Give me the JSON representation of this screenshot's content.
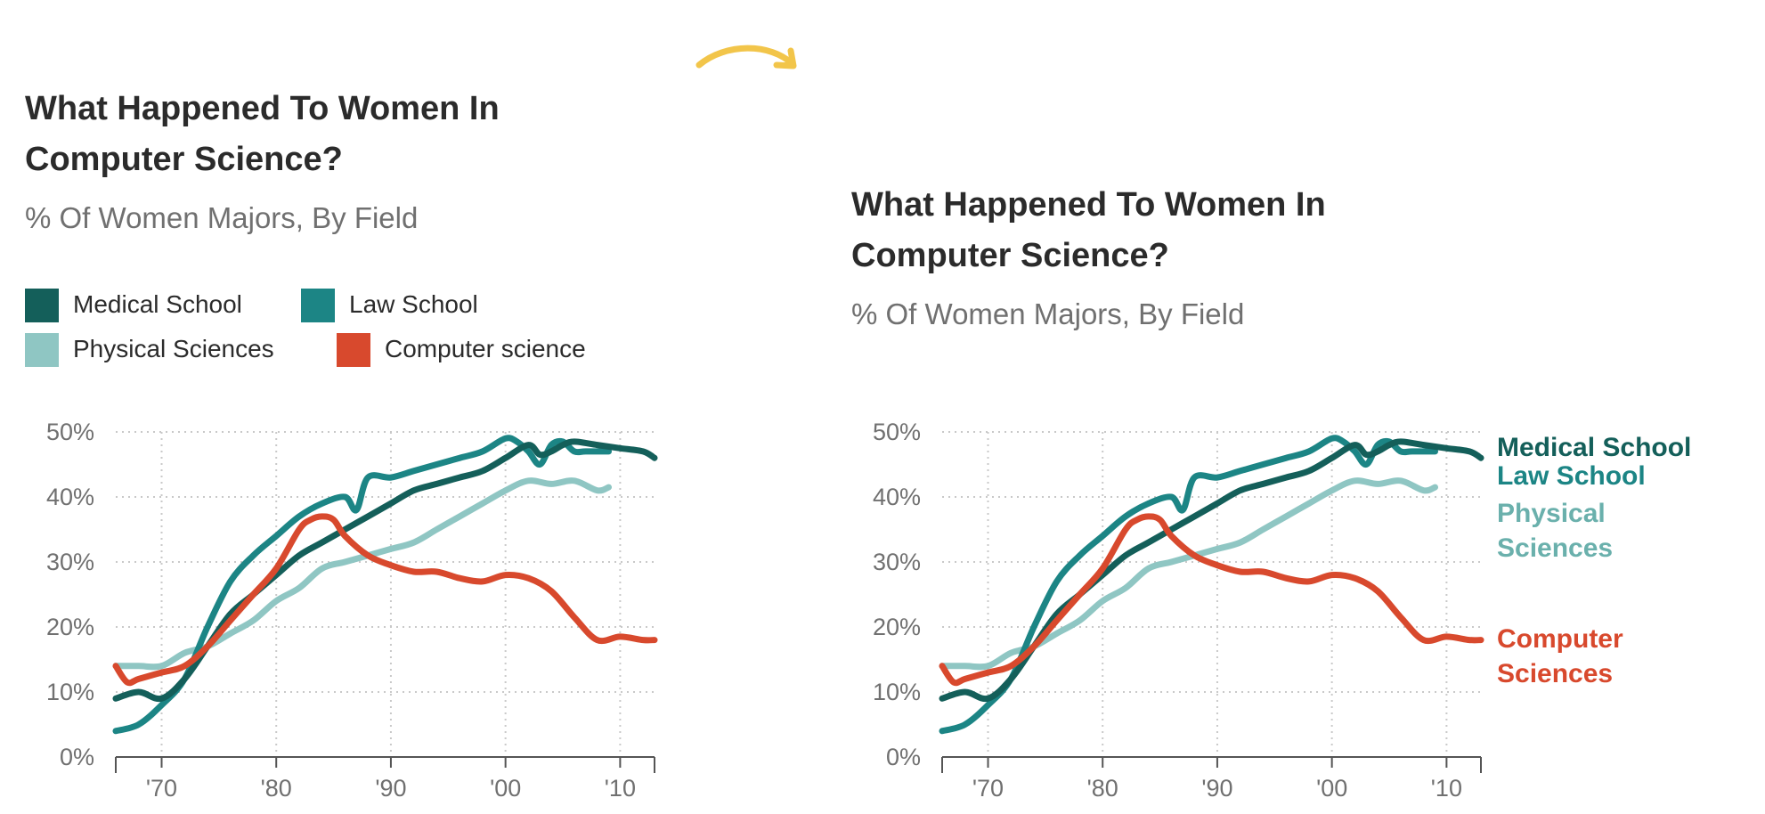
{
  "colors": {
    "medical": "#145f5a",
    "law": "#1c8585",
    "physical": "#8fc6c3",
    "cs": "#d8492d",
    "arrow": "#f2c54a",
    "grid": "#c9c9c9"
  },
  "left": {
    "title_line1": "What Happened To Women In",
    "title_line2": "Computer Science?",
    "subtitle": "% Of Women Majors, By Field",
    "legend": [
      {
        "label": "Medical School",
        "color": "#145f5a"
      },
      {
        "label": "Law School",
        "color": "#1c8585"
      },
      {
        "label": "Physical Sciences",
        "color": "#8fc6c3"
      },
      {
        "label": "Computer science",
        "color": "#d8492d"
      }
    ]
  },
  "right": {
    "title_line1": "What Happened To Women In",
    "title_line2": "Computer Science?",
    "subtitle": "% Of Women Majors, By Field",
    "end_labels": [
      {
        "lines": [
          "Medical School"
        ],
        "color": "#145f5a"
      },
      {
        "lines": [
          "Law School"
        ],
        "color": "#1c8585"
      },
      {
        "lines": [
          "Physical",
          "Sciences"
        ],
        "color": "#6ab0ac"
      },
      {
        "lines": [
          "Computer",
          "Sciences"
        ],
        "color": "#d8492d"
      }
    ]
  },
  "chart_data": {
    "type": "line",
    "title": "What Happened To Women In Computer Science?",
    "subtitle": "% Of Women Majors, By Field",
    "xlabel": "",
    "ylabel": "",
    "xlim": [
      1966,
      2013
    ],
    "ylim": [
      0,
      50
    ],
    "x_ticks": [
      1970,
      1980,
      1990,
      2000,
      2010
    ],
    "x_tick_labels": [
      "'70",
      "'80",
      "'90",
      "'00",
      "'10"
    ],
    "y_ticks": [
      0,
      10,
      20,
      30,
      40,
      50
    ],
    "y_tick_labels": [
      "0%",
      "10%",
      "20%",
      "30%",
      "40%",
      "50%"
    ],
    "grid": true,
    "series": [
      {
        "name": "Medical School",
        "color": "#145f5a",
        "x": [
          1966,
          1968,
          1970,
          1972,
          1974,
          1976,
          1978,
          1980,
          1982,
          1984,
          1986,
          1988,
          1990,
          1992,
          1994,
          1996,
          1998,
          2000,
          2002,
          2003,
          2004,
          2005,
          2006,
          2008,
          2010,
          2012,
          2013
        ],
        "y": [
          9,
          10,
          9,
          12,
          17,
          22,
          25,
          28,
          31,
          33,
          35,
          37,
          39,
          41,
          42,
          43,
          44,
          46,
          48,
          46.5,
          47,
          48,
          48.5,
          48,
          47.5,
          47,
          46
        ]
      },
      {
        "name": "Law School",
        "color": "#1c8585",
        "x": [
          1966,
          1968,
          1970,
          1972,
          1974,
          1976,
          1978,
          1980,
          1982,
          1984,
          1986,
          1987,
          1988,
          1990,
          1992,
          1994,
          1996,
          1998,
          2000,
          2001,
          2002,
          2003,
          2004,
          2005,
          2006,
          2007,
          2009
        ],
        "y": [
          4,
          5,
          8,
          12,
          20,
          27,
          31,
          34,
          37,
          39,
          40,
          38,
          43,
          43,
          44,
          45,
          46,
          47,
          49,
          48.5,
          47,
          45,
          48,
          48.5,
          47,
          47,
          47
        ]
      },
      {
        "name": "Physical Sciences",
        "color": "#8fc6c3",
        "x": [
          1966,
          1968,
          1970,
          1972,
          1974,
          1976,
          1978,
          1980,
          1982,
          1984,
          1986,
          1988,
          1990,
          1992,
          1994,
          1996,
          1998,
          2000,
          2002,
          2004,
          2006,
          2008,
          2009
        ],
        "y": [
          14,
          14,
          14,
          16,
          17,
          19,
          21,
          24,
          26,
          29,
          30,
          31,
          32,
          33,
          35,
          37,
          39,
          41,
          42.5,
          42,
          42.5,
          41,
          41.5
        ]
      },
      {
        "name": "Computer science",
        "color": "#d8492d",
        "x": [
          1966,
          1967,
          1968,
          1970,
          1972,
          1974,
          1976,
          1978,
          1980,
          1982,
          1983,
          1984,
          1985,
          1986,
          1988,
          1990,
          1992,
          1994,
          1996,
          1998,
          2000,
          2002,
          2004,
          2006,
          2008,
          2010,
          2012,
          2013
        ],
        "y": [
          14,
          11.5,
          12,
          13,
          14,
          17,
          21,
          25,
          29,
          35,
          36.5,
          37,
          36.5,
          34,
          31,
          29.5,
          28.5,
          28.5,
          27.5,
          27,
          28,
          27.5,
          25.5,
          21.5,
          18,
          18.5,
          18,
          18
        ]
      }
    ]
  }
}
